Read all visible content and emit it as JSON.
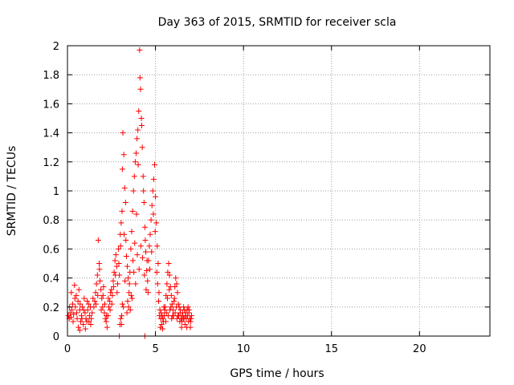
{
  "chart_data": {
    "type": "scatter",
    "title": "Day 363 of 2015, SRMTID for receiver scla",
    "xlabel": "GPS time / hours",
    "ylabel": "SRMTID / TECUs",
    "xlim": [
      0,
      24
    ],
    "ylim": [
      0,
      2
    ],
    "xticks": [
      0,
      5,
      10,
      15,
      20
    ],
    "yticks": [
      0,
      0.2,
      0.4,
      0.6,
      0.8,
      1,
      1.2,
      1.4,
      1.6,
      1.8,
      2
    ],
    "grid": true,
    "marker": "+",
    "marker_color": "#ff0000",
    "series": [
      {
        "name": "SRMTID",
        "points": [
          [
            0.05,
            0.14
          ],
          [
            0.1,
            0.12
          ],
          [
            0.15,
            0.16
          ],
          [
            0.2,
            0.13
          ],
          [
            0.25,
            0.18
          ],
          [
            0.3,
            0.22
          ],
          [
            0.35,
            0.15
          ],
          [
            0.4,
            0.35
          ],
          [
            0.45,
            0.2
          ],
          [
            0.5,
            0.28
          ],
          [
            0.55,
            0.12
          ],
          [
            0.6,
            0.24
          ],
          [
            0.65,
            0.32
          ],
          [
            0.7,
            0.18
          ],
          [
            0.75,
            0.1
          ],
          [
            0.8,
            0.14
          ],
          [
            0.85,
            0.2
          ],
          [
            0.9,
            0.08
          ],
          [
            0.95,
            0.26
          ],
          [
            1.0,
            0.16
          ],
          [
            1.05,
            0.12
          ],
          [
            1.1,
            0.1
          ],
          [
            1.15,
            0.18
          ],
          [
            1.2,
            0.22
          ],
          [
            1.25,
            0.14
          ],
          [
            1.3,
            0.2
          ],
          [
            1.35,
            0.12
          ],
          [
            1.4,
            0.16
          ],
          [
            1.5,
            0.2
          ],
          [
            0.12,
            0.2
          ],
          [
            0.22,
            0.3
          ],
          [
            0.32,
            0.1
          ],
          [
            0.42,
            0.26
          ],
          [
            0.52,
            0.16
          ],
          [
            0.62,
            0.06
          ],
          [
            0.72,
            0.22
          ],
          [
            0.82,
            0.12
          ],
          [
            0.92,
            0.18
          ],
          [
            1.02,
            0.05
          ],
          [
            1.12,
            0.24
          ],
          [
            1.22,
            0.1
          ],
          [
            1.32,
            0.08
          ],
          [
            1.45,
            0.26
          ],
          [
            1.55,
            0.24
          ],
          [
            1.6,
            0.3
          ],
          [
            1.65,
            0.36
          ],
          [
            1.7,
            0.42
          ],
          [
            1.75,
            0.66
          ],
          [
            1.8,
            0.5
          ],
          [
            1.85,
            0.38
          ],
          [
            1.9,
            0.32
          ],
          [
            1.95,
            0.26
          ],
          [
            2.0,
            0.2
          ],
          [
            2.05,
            0.34
          ],
          [
            2.1,
            0.16
          ],
          [
            2.15,
            0.12
          ],
          [
            2.2,
            0.1
          ],
          [
            2.25,
            0.06
          ],
          [
            2.3,
            0.14
          ],
          [
            2.35,
            0.2
          ],
          [
            2.4,
            0.24
          ],
          [
            2.45,
            0.3
          ],
          [
            2.5,
            0.32
          ],
          [
            2.55,
            0.28
          ],
          [
            2.6,
            0.38
          ],
          [
            2.65,
            0.44
          ],
          [
            2.7,
            0.52
          ],
          [
            2.75,
            0.56
          ],
          [
            1.62,
            0.22
          ],
          [
            1.72,
            0.28
          ],
          [
            1.82,
            0.46
          ],
          [
            1.92,
            0.18
          ],
          [
            2.02,
            0.28
          ],
          [
            2.12,
            0.22
          ],
          [
            2.22,
            0.14
          ],
          [
            2.32,
            0.26
          ],
          [
            2.42,
            0.18
          ],
          [
            2.52,
            0.22
          ],
          [
            2.62,
            0.34
          ],
          [
            2.72,
            0.42
          ],
          [
            2.8,
            0.48
          ],
          [
            2.85,
            0.36
          ],
          [
            2.9,
            0.6
          ],
          [
            2.95,
            0.42
          ],
          [
            3.0,
            0.7
          ],
          [
            3.05,
            0.78
          ],
          [
            3.1,
            0.86
          ],
          [
            3.15,
            1.4
          ],
          [
            3.2,
            1.25
          ],
          [
            3.25,
            1.02
          ],
          [
            3.3,
            0.92
          ],
          [
            3.35,
            0.55
          ],
          [
            3.4,
            0.48
          ],
          [
            3.45,
            0.4
          ],
          [
            3.5,
            0.3
          ],
          [
            3.55,
            0.44
          ],
          [
            3.6,
            0.6
          ],
          [
            3.65,
            0.72
          ],
          [
            3.7,
            0.86
          ],
          [
            3.75,
            1.0
          ],
          [
            3.8,
            1.1
          ],
          [
            3.85,
            1.2
          ],
          [
            3.9,
            1.26
          ],
          [
            3.95,
            1.36
          ],
          [
            4.0,
            1.42
          ],
          [
            4.05,
            1.55
          ],
          [
            4.1,
            1.97
          ],
          [
            4.15,
            1.7
          ],
          [
            4.2,
            1.5
          ],
          [
            4.25,
            1.3
          ],
          [
            4.3,
            1.1
          ],
          [
            4.35,
            0.92
          ],
          [
            4.4,
            0.75
          ],
          [
            4.45,
            0.58
          ],
          [
            4.5,
            0.45
          ],
          [
            2.82,
            0.3
          ],
          [
            2.92,
            0.5
          ],
          [
            3.02,
            0.62
          ],
          [
            3.12,
            1.15
          ],
          [
            3.22,
            0.7
          ],
          [
            3.32,
            0.66
          ],
          [
            3.42,
            0.24
          ],
          [
            3.52,
            0.36
          ],
          [
            3.62,
            0.28
          ],
          [
            3.72,
            0.52
          ],
          [
            3.82,
            0.64
          ],
          [
            3.92,
            0.84
          ],
          [
            4.02,
            1.18
          ],
          [
            4.12,
            1.78
          ],
          [
            4.22,
            1.45
          ],
          [
            4.32,
            1.0
          ],
          [
            4.42,
            0.66
          ],
          [
            4.52,
            0.52
          ],
          [
            3.08,
            0.14
          ],
          [
            2.98,
            0.08
          ],
          [
            3.18,
            0.2
          ],
          [
            3.38,
            0.16
          ],
          [
            3.02,
            0.12
          ],
          [
            3.07,
            0.08
          ],
          [
            3.12,
            0.22
          ],
          [
            3.27,
            0.38
          ],
          [
            3.47,
            0.2
          ],
          [
            3.57,
            0.18
          ],
          [
            3.67,
            0.26
          ],
          [
            3.77,
            0.44
          ],
          [
            3.87,
            0.36
          ],
          [
            3.97,
            0.56
          ],
          [
            4.07,
            0.46
          ],
          [
            4.17,
            0.62
          ],
          [
            4.27,
            0.54
          ],
          [
            4.37,
            0.42
          ],
          [
            4.47,
            0.32
          ],
          [
            4.55,
            0.38
          ],
          [
            4.6,
            0.52
          ],
          [
            4.65,
            0.62
          ],
          [
            4.7,
            0.7
          ],
          [
            4.75,
            0.8
          ],
          [
            4.8,
            0.9
          ],
          [
            4.85,
            1.0
          ],
          [
            4.9,
            1.08
          ],
          [
            4.95,
            1.18
          ],
          [
            5.0,
            0.96
          ],
          [
            5.05,
            0.78
          ],
          [
            5.1,
            0.62
          ],
          [
            5.15,
            0.5
          ],
          [
            5.2,
            0.3
          ],
          [
            5.25,
            0.18
          ],
          [
            5.3,
            0.12
          ],
          [
            5.35,
            0.08
          ],
          [
            5.4,
            0.05
          ],
          [
            5.45,
            0.1
          ],
          [
            5.5,
            0.14
          ],
          [
            5.55,
            0.2
          ],
          [
            5.6,
            0.28
          ],
          [
            5.65,
            0.36
          ],
          [
            5.7,
            0.44
          ],
          [
            5.75,
            0.5
          ],
          [
            5.8,
            0.42
          ],
          [
            5.85,
            0.34
          ],
          [
            5.9,
            0.28
          ],
          [
            5.95,
            0.22
          ],
          [
            6.0,
            0.18
          ],
          [
            6.05,
            0.24
          ],
          [
            6.1,
            0.34
          ],
          [
            6.15,
            0.4
          ],
          [
            6.2,
            0.36
          ],
          [
            6.25,
            0.3
          ],
          [
            6.3,
            0.22
          ],
          [
            6.35,
            0.2
          ],
          [
            6.4,
            0.16
          ],
          [
            6.45,
            0.12
          ],
          [
            6.5,
            0.1
          ],
          [
            6.55,
            0.16
          ],
          [
            6.6,
            0.2
          ],
          [
            6.65,
            0.18
          ],
          [
            6.7,
            0.14
          ],
          [
            6.75,
            0.12
          ],
          [
            6.8,
            0.18
          ],
          [
            6.85,
            0.2
          ],
          [
            6.9,
            0.16
          ],
          [
            6.95,
            0.12
          ],
          [
            7.0,
            0.1
          ],
          [
            7.05,
            0.14
          ],
          [
            4.58,
            0.3
          ],
          [
            4.68,
            0.46
          ],
          [
            4.78,
            0.58
          ],
          [
            4.88,
            0.84
          ],
          [
            4.98,
            0.72
          ],
          [
            5.08,
            0.44
          ],
          [
            5.18,
            0.24
          ],
          [
            5.28,
            0.06
          ],
          [
            5.38,
            0.14
          ],
          [
            5.48,
            0.2
          ],
          [
            5.58,
            0.1
          ],
          [
            5.68,
            0.26
          ],
          [
            5.78,
            0.32
          ],
          [
            5.88,
            0.2
          ],
          [
            5.98,
            0.14
          ],
          [
            6.08,
            0.26
          ],
          [
            6.18,
            0.2
          ],
          [
            6.28,
            0.14
          ],
          [
            6.38,
            0.1
          ],
          [
            6.48,
            0.06
          ],
          [
            6.58,
            0.12
          ],
          [
            6.68,
            0.08
          ],
          [
            6.78,
            0.06
          ],
          [
            6.88,
            0.1
          ],
          [
            6.98,
            0.06
          ],
          [
            4.4,
            0.0
          ],
          [
            2.95,
            0.0
          ],
          [
            0.7,
            0.04
          ],
          [
            5.12,
            0.36
          ],
          [
            5.22,
            0.14
          ],
          [
            5.32,
            0.16
          ],
          [
            5.42,
            0.12
          ],
          [
            5.52,
            0.18
          ],
          [
            5.62,
            0.16
          ],
          [
            5.72,
            0.14
          ],
          [
            5.82,
            0.18
          ],
          [
            5.92,
            0.12
          ],
          [
            6.02,
            0.14
          ],
          [
            6.12,
            0.16
          ],
          [
            6.22,
            0.12
          ],
          [
            6.32,
            0.14
          ],
          [
            6.42,
            0.18
          ],
          [
            6.52,
            0.14
          ],
          [
            6.62,
            0.12
          ],
          [
            6.72,
            0.16
          ],
          [
            6.82,
            0.14
          ],
          [
            6.92,
            0.18
          ],
          [
            7.02,
            0.12
          ]
        ]
      }
    ]
  }
}
